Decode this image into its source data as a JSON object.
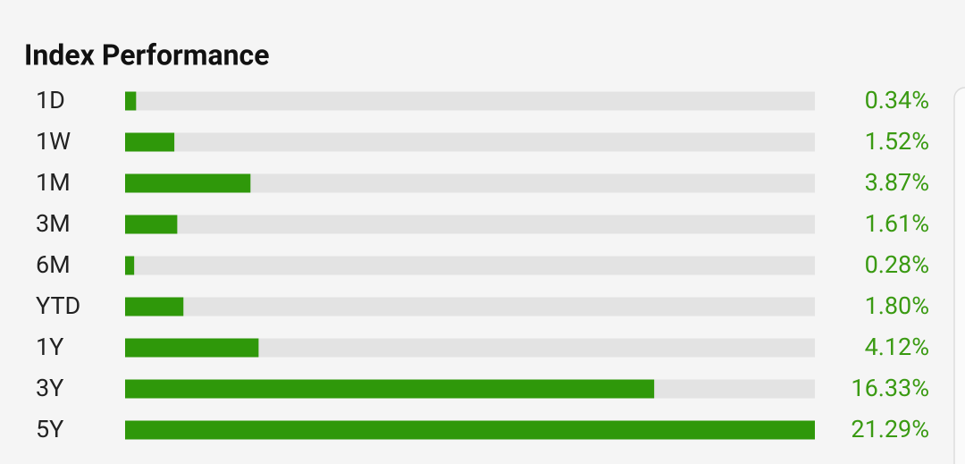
{
  "chart_data": {
    "type": "bar",
    "orientation": "horizontal",
    "title": "Index Performance",
    "categories": [
      "1D",
      "1W",
      "1M",
      "3M",
      "6M",
      "YTD",
      "1Y",
      "3Y",
      "5Y"
    ],
    "values": [
      0.34,
      1.52,
      3.87,
      1.61,
      0.28,
      1.8,
      4.12,
      16.33,
      21.29
    ],
    "value_labels": [
      "0.34%",
      "1.52%",
      "3.87%",
      "1.61%",
      "0.28%",
      "1.80%",
      "4.12%",
      "16.33%",
      "21.29%"
    ],
    "color": "#2f980a",
    "track_color": "#e3e3e3",
    "xlim": [
      0,
      21.29
    ]
  }
}
